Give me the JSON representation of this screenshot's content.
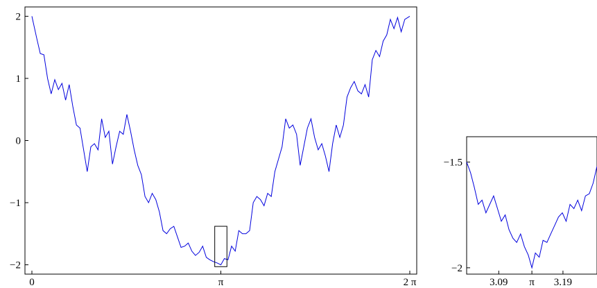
{
  "chart_data": [
    {
      "type": "line",
      "title": "",
      "xlabel": "",
      "ylabel": "",
      "x_range": [
        0,
        6.2832
      ],
      "ylim": [
        -2.15,
        2.15
      ],
      "x_ticks": [
        {
          "value": 0,
          "label": "0"
        },
        {
          "value": 3.1416,
          "label": "π"
        },
        {
          "value": 6.2832,
          "label": "2 π"
        }
      ],
      "y_ticks": [
        {
          "value": 2,
          "label": "2"
        },
        {
          "value": 1,
          "label": "1"
        },
        {
          "value": 0,
          "label": "0"
        },
        {
          "value": -1,
          "label": "−1"
        },
        {
          "value": -2,
          "label": "−2"
        }
      ],
      "grid": false,
      "line_color": "#0000dd",
      "series": [
        {
          "x": [
            0.0,
            0.08,
            0.14,
            0.2,
            0.26,
            0.32,
            0.38,
            0.44,
            0.5,
            0.56,
            0.62,
            0.68,
            0.74,
            0.8,
            0.86,
            0.92,
            0.98,
            1.04,
            1.1,
            1.16,
            1.22,
            1.28,
            1.34,
            1.4,
            1.46,
            1.52,
            1.58,
            1.64,
            1.7,
            1.76,
            1.82,
            1.88,
            1.94,
            2.0,
            2.06,
            2.12,
            2.18,
            2.24,
            2.3,
            2.36,
            2.42,
            2.48,
            2.54,
            2.6,
            2.66,
            2.72,
            2.78,
            2.84,
            2.9,
            2.96,
            3.02,
            3.08,
            3.1416,
            3.2,
            3.26,
            3.32,
            3.38,
            3.44,
            3.5,
            3.56,
            3.62,
            3.68,
            3.74,
            3.8,
            3.86,
            3.92,
            3.98,
            4.04,
            4.1,
            4.16,
            4.22,
            4.28,
            4.34,
            4.4,
            4.46,
            4.52,
            4.58,
            4.64,
            4.7,
            4.76,
            4.82,
            4.88,
            4.94,
            5.0,
            5.06,
            5.12,
            5.18,
            5.24,
            5.3,
            5.36,
            5.42,
            5.48,
            5.54,
            5.6,
            5.66,
            5.72,
            5.78,
            5.84,
            5.9,
            5.96,
            6.02,
            6.08,
            6.14,
            6.2,
            6.2832
          ],
          "y": [
            2.0,
            1.65,
            1.4,
            1.38,
            1.0,
            0.75,
            0.98,
            0.82,
            0.92,
            0.65,
            0.9,
            0.55,
            0.25,
            0.2,
            -0.15,
            -0.5,
            -0.1,
            -0.05,
            -0.15,
            0.35,
            0.05,
            0.15,
            -0.38,
            -0.1,
            0.15,
            0.1,
            0.42,
            0.15,
            -0.15,
            -0.4,
            -0.55,
            -0.9,
            -1.0,
            -0.85,
            -0.95,
            -1.15,
            -1.45,
            -1.5,
            -1.42,
            -1.38,
            -1.55,
            -1.72,
            -1.7,
            -1.65,
            -1.78,
            -1.85,
            -1.8,
            -1.7,
            -1.88,
            -1.92,
            -1.95,
            -1.97,
            -2.0,
            -1.9,
            -1.92,
            -1.7,
            -1.78,
            -1.45,
            -1.5,
            -1.5,
            -1.45,
            -1.0,
            -0.9,
            -0.95,
            -1.05,
            -0.85,
            -0.9,
            -0.5,
            -0.3,
            -0.1,
            0.35,
            0.2,
            0.25,
            0.1,
            -0.4,
            -0.1,
            0.2,
            0.35,
            0.05,
            -0.15,
            -0.05,
            -0.25,
            -0.5,
            -0.05,
            0.25,
            0.05,
            0.25,
            0.7,
            0.85,
            0.95,
            0.8,
            0.75,
            0.9,
            0.7,
            1.3,
            1.45,
            1.35,
            1.6,
            1.7,
            1.95,
            1.8,
            1.98,
            1.75,
            1.95,
            2.0
          ]
        }
      ]
    },
    {
      "type": "line",
      "title": "",
      "xlabel": "",
      "ylabel": "",
      "x_range": [
        3.04,
        3.243
      ],
      "ylim": [
        -2.03,
        -1.38
      ],
      "x_ticks": [
        {
          "value": 3.09,
          "label": "3.09"
        },
        {
          "value": 3.1416,
          "label": "π"
        },
        {
          "value": 3.19,
          "label": "3.19"
        }
      ],
      "y_ticks": [
        {
          "value": -1.5,
          "label": "−1.5"
        },
        {
          "value": -2,
          "label": "−2"
        }
      ],
      "grid": false,
      "line_color": "#0000dd",
      "series": [
        {
          "x": [
            3.04,
            3.046,
            3.052,
            3.058,
            3.064,
            3.07,
            3.076,
            3.082,
            3.088,
            3.094,
            3.1,
            3.106,
            3.112,
            3.118,
            3.124,
            3.13,
            3.136,
            3.1416,
            3.147,
            3.153,
            3.159,
            3.165,
            3.171,
            3.177,
            3.183,
            3.189,
            3.195,
            3.201,
            3.207,
            3.213,
            3.219,
            3.225,
            3.231,
            3.237,
            3.243
          ],
          "y": [
            -1.5,
            -1.55,
            -1.62,
            -1.7,
            -1.68,
            -1.74,
            -1.7,
            -1.66,
            -1.72,
            -1.78,
            -1.75,
            -1.82,
            -1.86,
            -1.88,
            -1.84,
            -1.9,
            -1.94,
            -2.0,
            -1.93,
            -1.95,
            -1.87,
            -1.88,
            -1.84,
            -1.8,
            -1.76,
            -1.74,
            -1.78,
            -1.7,
            -1.72,
            -1.68,
            -1.73,
            -1.66,
            -1.65,
            -1.6,
            -1.52
          ]
        }
      ]
    }
  ]
}
